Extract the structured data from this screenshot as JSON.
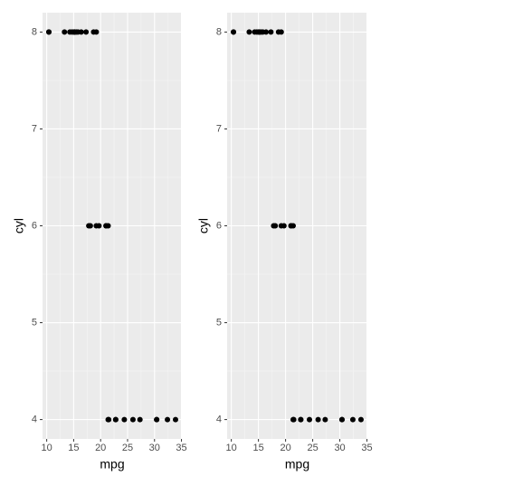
{
  "chart_data": [
    {
      "type": "scatter",
      "xlabel": "mpg",
      "ylabel": "cyl",
      "x": [
        21.0,
        21.0,
        22.8,
        21.4,
        18.7,
        18.1,
        14.3,
        24.4,
        22.8,
        19.2,
        17.8,
        16.4,
        17.3,
        15.2,
        10.4,
        10.4,
        14.7,
        32.4,
        30.4,
        33.9,
        21.5,
        15.5,
        15.2,
        13.3,
        19.2,
        27.3,
        26.0,
        30.4,
        15.8,
        19.7,
        15.0,
        21.4
      ],
      "y": [
        6,
        6,
        4,
        6,
        8,
        6,
        8,
        4,
        4,
        6,
        6,
        8,
        8,
        8,
        8,
        8,
        8,
        4,
        4,
        4,
        4,
        8,
        8,
        8,
        8,
        4,
        4,
        4,
        8,
        6,
        8,
        4
      ],
      "color": "#000000",
      "xlim": [
        9.225,
        35.075
      ],
      "ylim": [
        3.8,
        8.2
      ],
      "xticks": [
        10,
        15,
        20,
        25,
        30,
        35
      ],
      "yticks": [
        4,
        5,
        6,
        7,
        8
      ],
      "grid": true
    },
    {
      "type": "scatter",
      "xlabel": "mpg",
      "ylabel": "cyl",
      "x": [
        21.0,
        21.0,
        22.8,
        21.4,
        18.7,
        18.1,
        14.3,
        24.4,
        22.8,
        19.2,
        17.8,
        16.4,
        17.3,
        15.2,
        10.4,
        10.4,
        14.7,
        32.4,
        30.4,
        33.9,
        21.5,
        15.5,
        15.2,
        13.3,
        19.2,
        27.3,
        26.0,
        30.4,
        15.8,
        19.7,
        15.0,
        21.4
      ],
      "y": [
        6,
        6,
        4,
        6,
        8,
        6,
        8,
        4,
        4,
        6,
        6,
        8,
        8,
        8,
        8,
        8,
        8,
        4,
        4,
        4,
        4,
        8,
        8,
        8,
        8,
        4,
        4,
        4,
        8,
        6,
        8,
        4
      ],
      "color": "#000000",
      "xlim": [
        9.225,
        35.075
      ],
      "ylim": [
        3.8,
        8.2
      ],
      "xticks": [
        10,
        15,
        20,
        25,
        30,
        35
      ],
      "yticks": [
        4,
        5,
        6,
        7,
        8
      ],
      "grid": true
    }
  ]
}
